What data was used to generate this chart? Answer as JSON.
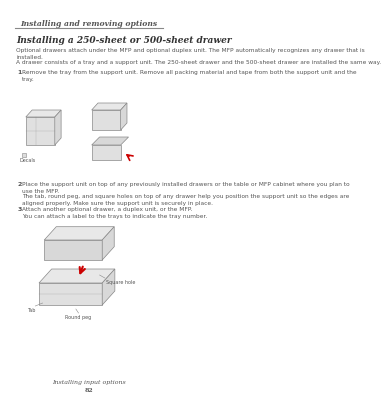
{
  "header_text": "Installing and removing options",
  "title": "Installing a 250-sheet or 500-sheet drawer",
  "para1": "Optional drawers attach under the MFP and optional duplex unit. The MFP automatically recognizes any drawer that is\ninstalled.",
  "para2": "A drawer consists of a tray and a support unit. The 250-sheet drawer and the 500-sheet drawer are installed the same way.",
  "step1_num": "1",
  "step1_text": "Remove the tray from the support unit. Remove all packing material and tape from both the support unit and the\ntray.",
  "step2_num": "2",
  "step2_text": "Place the support unit on top of any previously installed drawers or the table or MFP cabinet where you plan to\nuse the MFP.",
  "step2b_text": "The tab, round peg, and square holes on top of any drawer help you position the support unit so the edges are\naligned properly. Make sure the support unit is securely in place.",
  "step3_num": "3",
  "step3_text": "Attach another optional drawer, a duplex unit, or the MFP.",
  "step3b_text": "You can attach a label to the trays to indicate the tray number.",
  "label_decals": "Decals",
  "label_tab": "Tab",
  "label_square_hole": "Square hole",
  "label_round_peg": "Round peg",
  "footer_line1": "Installing input options",
  "footer_line2": "82",
  "bg_color": "#ffffff",
  "text_color": "#555555",
  "header_color": "#555555",
  "line_color": "#888888",
  "diagram_color": "#cccccc",
  "diagram_edge": "#888888",
  "arrow_color": "#cc0000",
  "title_color": "#333333"
}
